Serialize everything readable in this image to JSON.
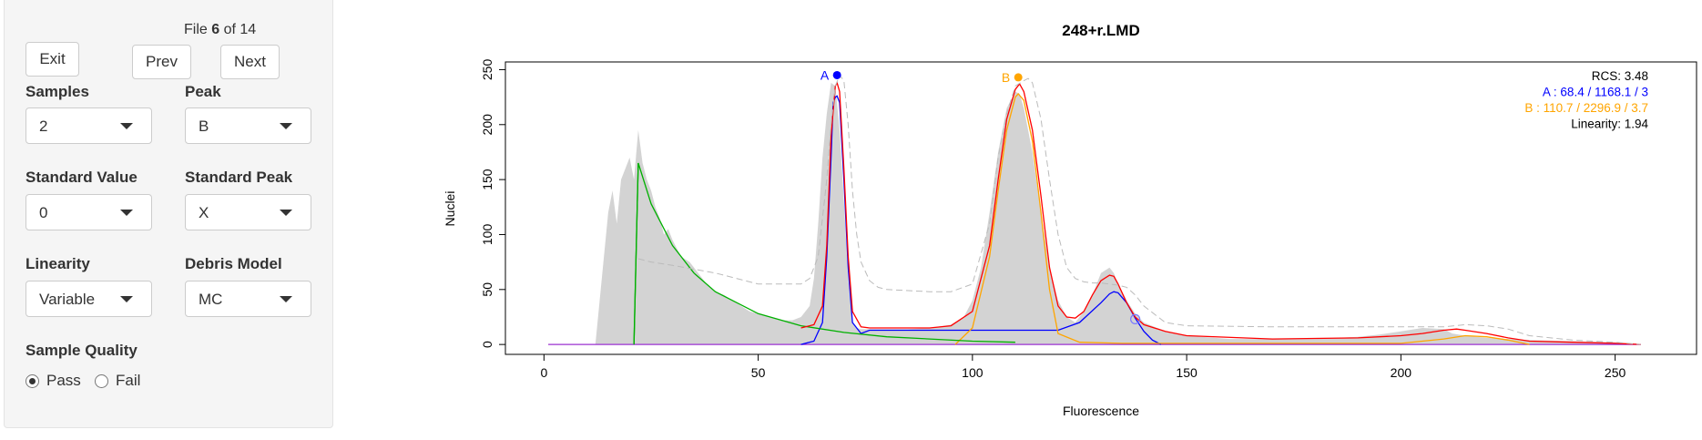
{
  "controls": {
    "file_prefix": "File",
    "file_index": "6",
    "file_of": "of 14",
    "exit_label": "Exit",
    "prev_label": "Prev",
    "next_label": "Next",
    "samples": {
      "label": "Samples",
      "value": "2"
    },
    "peak": {
      "label": "Peak",
      "value": "B"
    },
    "standard_value": {
      "label": "Standard Value",
      "value": "0"
    },
    "standard_peak": {
      "label": "Standard Peak",
      "value": "X"
    },
    "linearity": {
      "label": "Linearity",
      "value": "Variable"
    },
    "debris_model": {
      "label": "Debris Model",
      "value": "MC"
    },
    "sample_quality": {
      "label": "Sample Quality",
      "pass_label": "Pass",
      "fail_label": "Fail",
      "selected": "Pass"
    }
  },
  "chart_data": {
    "type": "area",
    "title": "248+r.LMD",
    "xlabel": "Fluorescence",
    "ylabel": "Nuclei",
    "xlim": [
      -9,
      269
    ],
    "ylim": [
      -9,
      257
    ],
    "xticks": [
      0,
      50,
      100,
      150,
      200,
      250
    ],
    "yticks": [
      0,
      50,
      100,
      150,
      200,
      250
    ],
    "colors": {
      "data": "#d3d3d3",
      "fit": "#ff0000",
      "peakA": "#0000ff",
      "peakB": "#ffa500",
      "debris": "#00b000",
      "dashed": "#bbbbbb",
      "marker": "#7a7aff"
    },
    "histogram": {
      "x": [
        12,
        13,
        14,
        15,
        16,
        17,
        18,
        19,
        20,
        21,
        22,
        23,
        24,
        25,
        26,
        27,
        28,
        29,
        30,
        32,
        34,
        36,
        38,
        40,
        42,
        44,
        46,
        48,
        50,
        52,
        54,
        56,
        58,
        60,
        62,
        63,
        64,
        65,
        66,
        67,
        68,
        69,
        70,
        71,
        72,
        73,
        74,
        75,
        76,
        78,
        80,
        85,
        90,
        95,
        98,
        100,
        102,
        104,
        106,
        108,
        110,
        111,
        112,
        114,
        116,
        118,
        120,
        122,
        124,
        126,
        128,
        130,
        132,
        133,
        134,
        136,
        138,
        140,
        145,
        150,
        160,
        170,
        180,
        190,
        195,
        200,
        205,
        210,
        212,
        215,
        220,
        225,
        230,
        240,
        250,
        256
      ],
      "y": [
        0,
        40,
        80,
        120,
        140,
        110,
        150,
        160,
        170,
        150,
        195,
        165,
        150,
        140,
        125,
        115,
        100,
        105,
        95,
        80,
        75,
        65,
        55,
        48,
        45,
        40,
        35,
        30,
        28,
        26,
        24,
        22,
        22,
        25,
        35,
        60,
        110,
        170,
        210,
        238,
        235,
        195,
        130,
        60,
        20,
        15,
        14,
        14,
        14,
        14,
        14,
        14,
        15,
        18,
        25,
        40,
        70,
        120,
        175,
        215,
        230,
        228,
        215,
        175,
        120,
        70,
        40,
        25,
        20,
        30,
        45,
        65,
        70,
        65,
        55,
        40,
        28,
        20,
        12,
        8,
        5,
        5,
        5,
        7,
        9,
        12,
        15,
        14,
        10,
        8,
        6,
        5,
        4,
        3,
        2,
        0
      ]
    },
    "series": [
      {
        "name": "A",
        "color": "#0000ff",
        "x": [
          60,
          63,
          65,
          66,
          67,
          67.5,
          68,
          68.4,
          69,
          70,
          71,
          72,
          74,
          76,
          80,
          90,
          100,
          110,
          120,
          125,
          130,
          132,
          133,
          134,
          136,
          138,
          140,
          142,
          144
        ],
        "y": [
          0,
          3,
          20,
          80,
          170,
          220,
          225,
          226,
          220,
          150,
          70,
          20,
          10,
          13,
          13,
          13,
          13,
          13,
          13,
          20,
          38,
          46,
          48,
          47,
          38,
          24,
          12,
          4,
          0
        ]
      },
      {
        "name": "B",
        "color": "#ffa500",
        "x": [
          96,
          100,
          104,
          106,
          108,
          110,
          110.7,
          112,
          114,
          116,
          118,
          120,
          125,
          135,
          150,
          200,
          210,
          215,
          220,
          225,
          230
        ],
        "y": [
          0,
          15,
          80,
          140,
          195,
          225,
          228,
          222,
          185,
          120,
          50,
          10,
          2,
          1,
          1,
          1,
          5,
          8,
          7,
          4,
          0
        ]
      },
      {
        "name": "debris",
        "color": "#00b000",
        "x": [
          21,
          22,
          25,
          30,
          35,
          40,
          50,
          60,
          70,
          80,
          90,
          100,
          110
        ],
        "y": [
          0,
          165,
          128,
          90,
          65,
          48,
          28,
          17,
          11,
          7,
          5,
          3,
          2
        ]
      },
      {
        "name": "fit",
        "color": "#ff0000",
        "x": [
          60,
          63,
          65,
          66,
          67,
          68,
          68.4,
          69,
          70,
          71,
          72,
          74,
          76,
          80,
          90,
          95,
          100,
          104,
          106,
          108,
          110,
          111,
          112,
          114,
          116,
          118,
          120,
          122,
          124,
          126,
          128,
          130,
          132,
          133,
          134,
          136,
          138,
          140,
          145,
          150,
          170,
          190,
          200,
          205,
          210,
          213,
          215,
          220,
          225,
          230,
          240,
          250,
          256
        ],
        "y": [
          15,
          18,
          35,
          90,
          190,
          235,
          238,
          230,
          160,
          80,
          30,
          16,
          15,
          15,
          15,
          17,
          30,
          90,
          150,
          205,
          232,
          237,
          230,
          195,
          135,
          70,
          35,
          25,
          24,
          30,
          45,
          58,
          63,
          62,
          55,
          38,
          25,
          18,
          12,
          8,
          5,
          6,
          8,
          10,
          13,
          14,
          13,
          10,
          6,
          3,
          2,
          1,
          0
        ]
      },
      {
        "name": "dashed-fit",
        "color": "#bbbbbb",
        "x": [
          22,
          25,
          30,
          40,
          50,
          60,
          62,
          64,
          66,
          67,
          68,
          69,
          70,
          71,
          72,
          73,
          74,
          76,
          78,
          80,
          90,
          95,
          100,
          104,
          106,
          108,
          110,
          112,
          113,
          114,
          116,
          118,
          120,
          122,
          124,
          126,
          128,
          130,
          132,
          134,
          136,
          138,
          140,
          145,
          150,
          170,
          190,
          200,
          210,
          215,
          220,
          225,
          230,
          240,
          250,
          256
        ],
        "y": [
          78,
          75,
          72,
          65,
          55,
          55,
          60,
          80,
          150,
          200,
          235,
          245,
          240,
          200,
          140,
          100,
          75,
          58,
          52,
          50,
          48,
          48,
          55,
          110,
          170,
          210,
          235,
          240,
          242,
          238,
          205,
          150,
          100,
          70,
          60,
          57,
          56,
          56,
          55,
          54,
          52,
          45,
          35,
          20,
          17,
          16,
          16,
          16,
          16,
          18,
          17,
          14,
          8,
          4,
          2,
          0
        ]
      }
    ],
    "peaks": [
      {
        "label": "A",
        "x": 68.4,
        "y": 245,
        "color": "#0000ff"
      },
      {
        "label": "B",
        "x": 110.7,
        "y": 243,
        "color": "#ffa500"
      }
    ],
    "marker": {
      "x": 138,
      "y": 23,
      "color": "#7a7aff"
    },
    "stats": [
      {
        "label": "RCS:",
        "value": "3.48",
        "color": "#000000"
      },
      {
        "label": "A :",
        "value": "68.4 / 1168.1 / 3",
        "color": "#0000ff"
      },
      {
        "label": "B :",
        "value": "110.7 / 2296.9 / 3.7",
        "color": "#ffa500"
      },
      {
        "label": "Linearity:",
        "value": "1.94",
        "color": "#000000"
      }
    ]
  }
}
